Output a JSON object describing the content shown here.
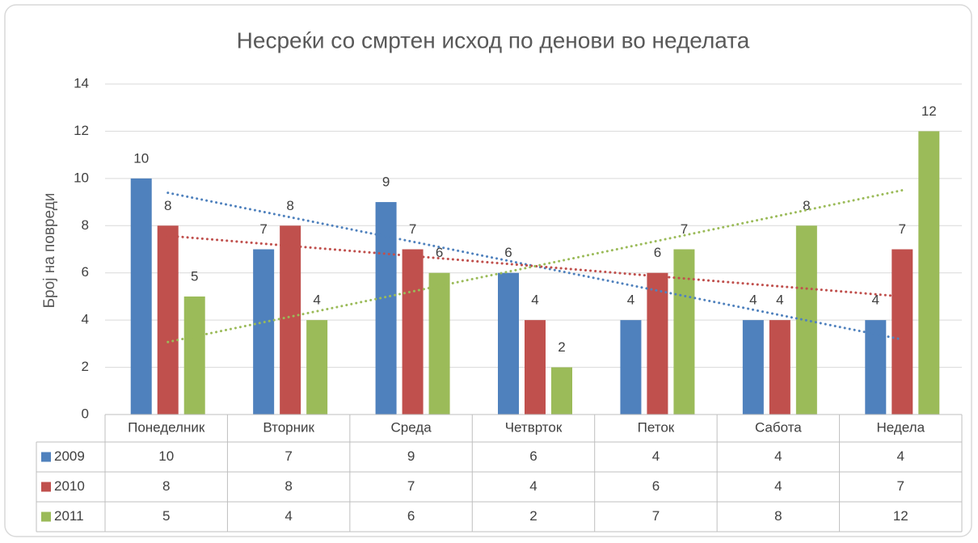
{
  "chart_data": {
    "type": "bar",
    "title": "Несреќи со смртен исход по денови во неделата",
    "y_label": "Број на повреди",
    "categories": [
      "Понеделник",
      "Вторник",
      "Среда",
      "Четврток",
      "Петок",
      "Сабота",
      "Недела"
    ],
    "series": [
      {
        "name": "2009",
        "color": "#4f81bd",
        "values": [
          10,
          7,
          9,
          6,
          4,
          4,
          4
        ]
      },
      {
        "name": "2010",
        "color": "#c0504d",
        "values": [
          8,
          8,
          7,
          4,
          6,
          4,
          7
        ]
      },
      {
        "name": "2011",
        "color": "#9bbb59",
        "values": [
          5,
          4,
          6,
          2,
          7,
          8,
          12
        ]
      }
    ],
    "ylim": [
      0,
      14
    ],
    "yticks": [
      0,
      2,
      4,
      6,
      8,
      10,
      12,
      14
    ],
    "grid": true,
    "trendline": true,
    "data_table": true,
    "data_labels": true
  }
}
